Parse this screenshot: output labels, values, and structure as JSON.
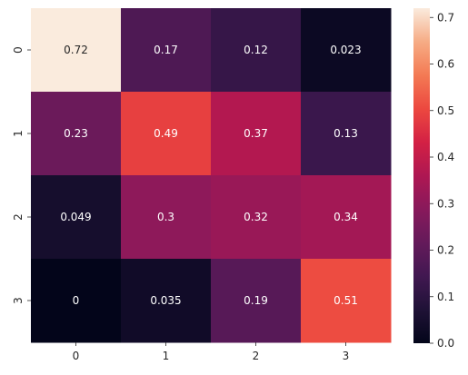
{
  "chart_data": {
    "type": "heatmap",
    "x_labels": [
      "0",
      "1",
      "2",
      "3"
    ],
    "y_labels": [
      "0",
      "1",
      "2",
      "3"
    ],
    "values": [
      [
        0.72,
        0.17,
        0.12,
        0.023
      ],
      [
        0.23,
        0.49,
        0.37,
        0.13
      ],
      [
        0.049,
        0.3,
        0.32,
        0.34
      ],
      [
        0,
        0.035,
        0.19,
        0.51
      ]
    ],
    "annotations": [
      [
        "0.72",
        "0.17",
        "0.12",
        "0.023"
      ],
      [
        "0.23",
        "0.49",
        "0.37",
        "0.13"
      ],
      [
        "0.049",
        "0.3",
        "0.32",
        "0.34"
      ],
      [
        "0",
        "0.035",
        "0.19",
        "0.51"
      ]
    ],
    "colorbar": {
      "min": 0.0,
      "max": 0.72,
      "ticks": [
        0.0,
        0.1,
        0.2,
        0.3,
        0.4,
        0.5,
        0.6,
        0.7
      ],
      "tick_labels": [
        "0.0",
        "0.1",
        "0.2",
        "0.3",
        "0.4",
        "0.5",
        "0.6",
        "0.7"
      ],
      "colormap": "rocket"
    },
    "title": "",
    "xlabel": "",
    "ylabel": "",
    "grid": false
  }
}
